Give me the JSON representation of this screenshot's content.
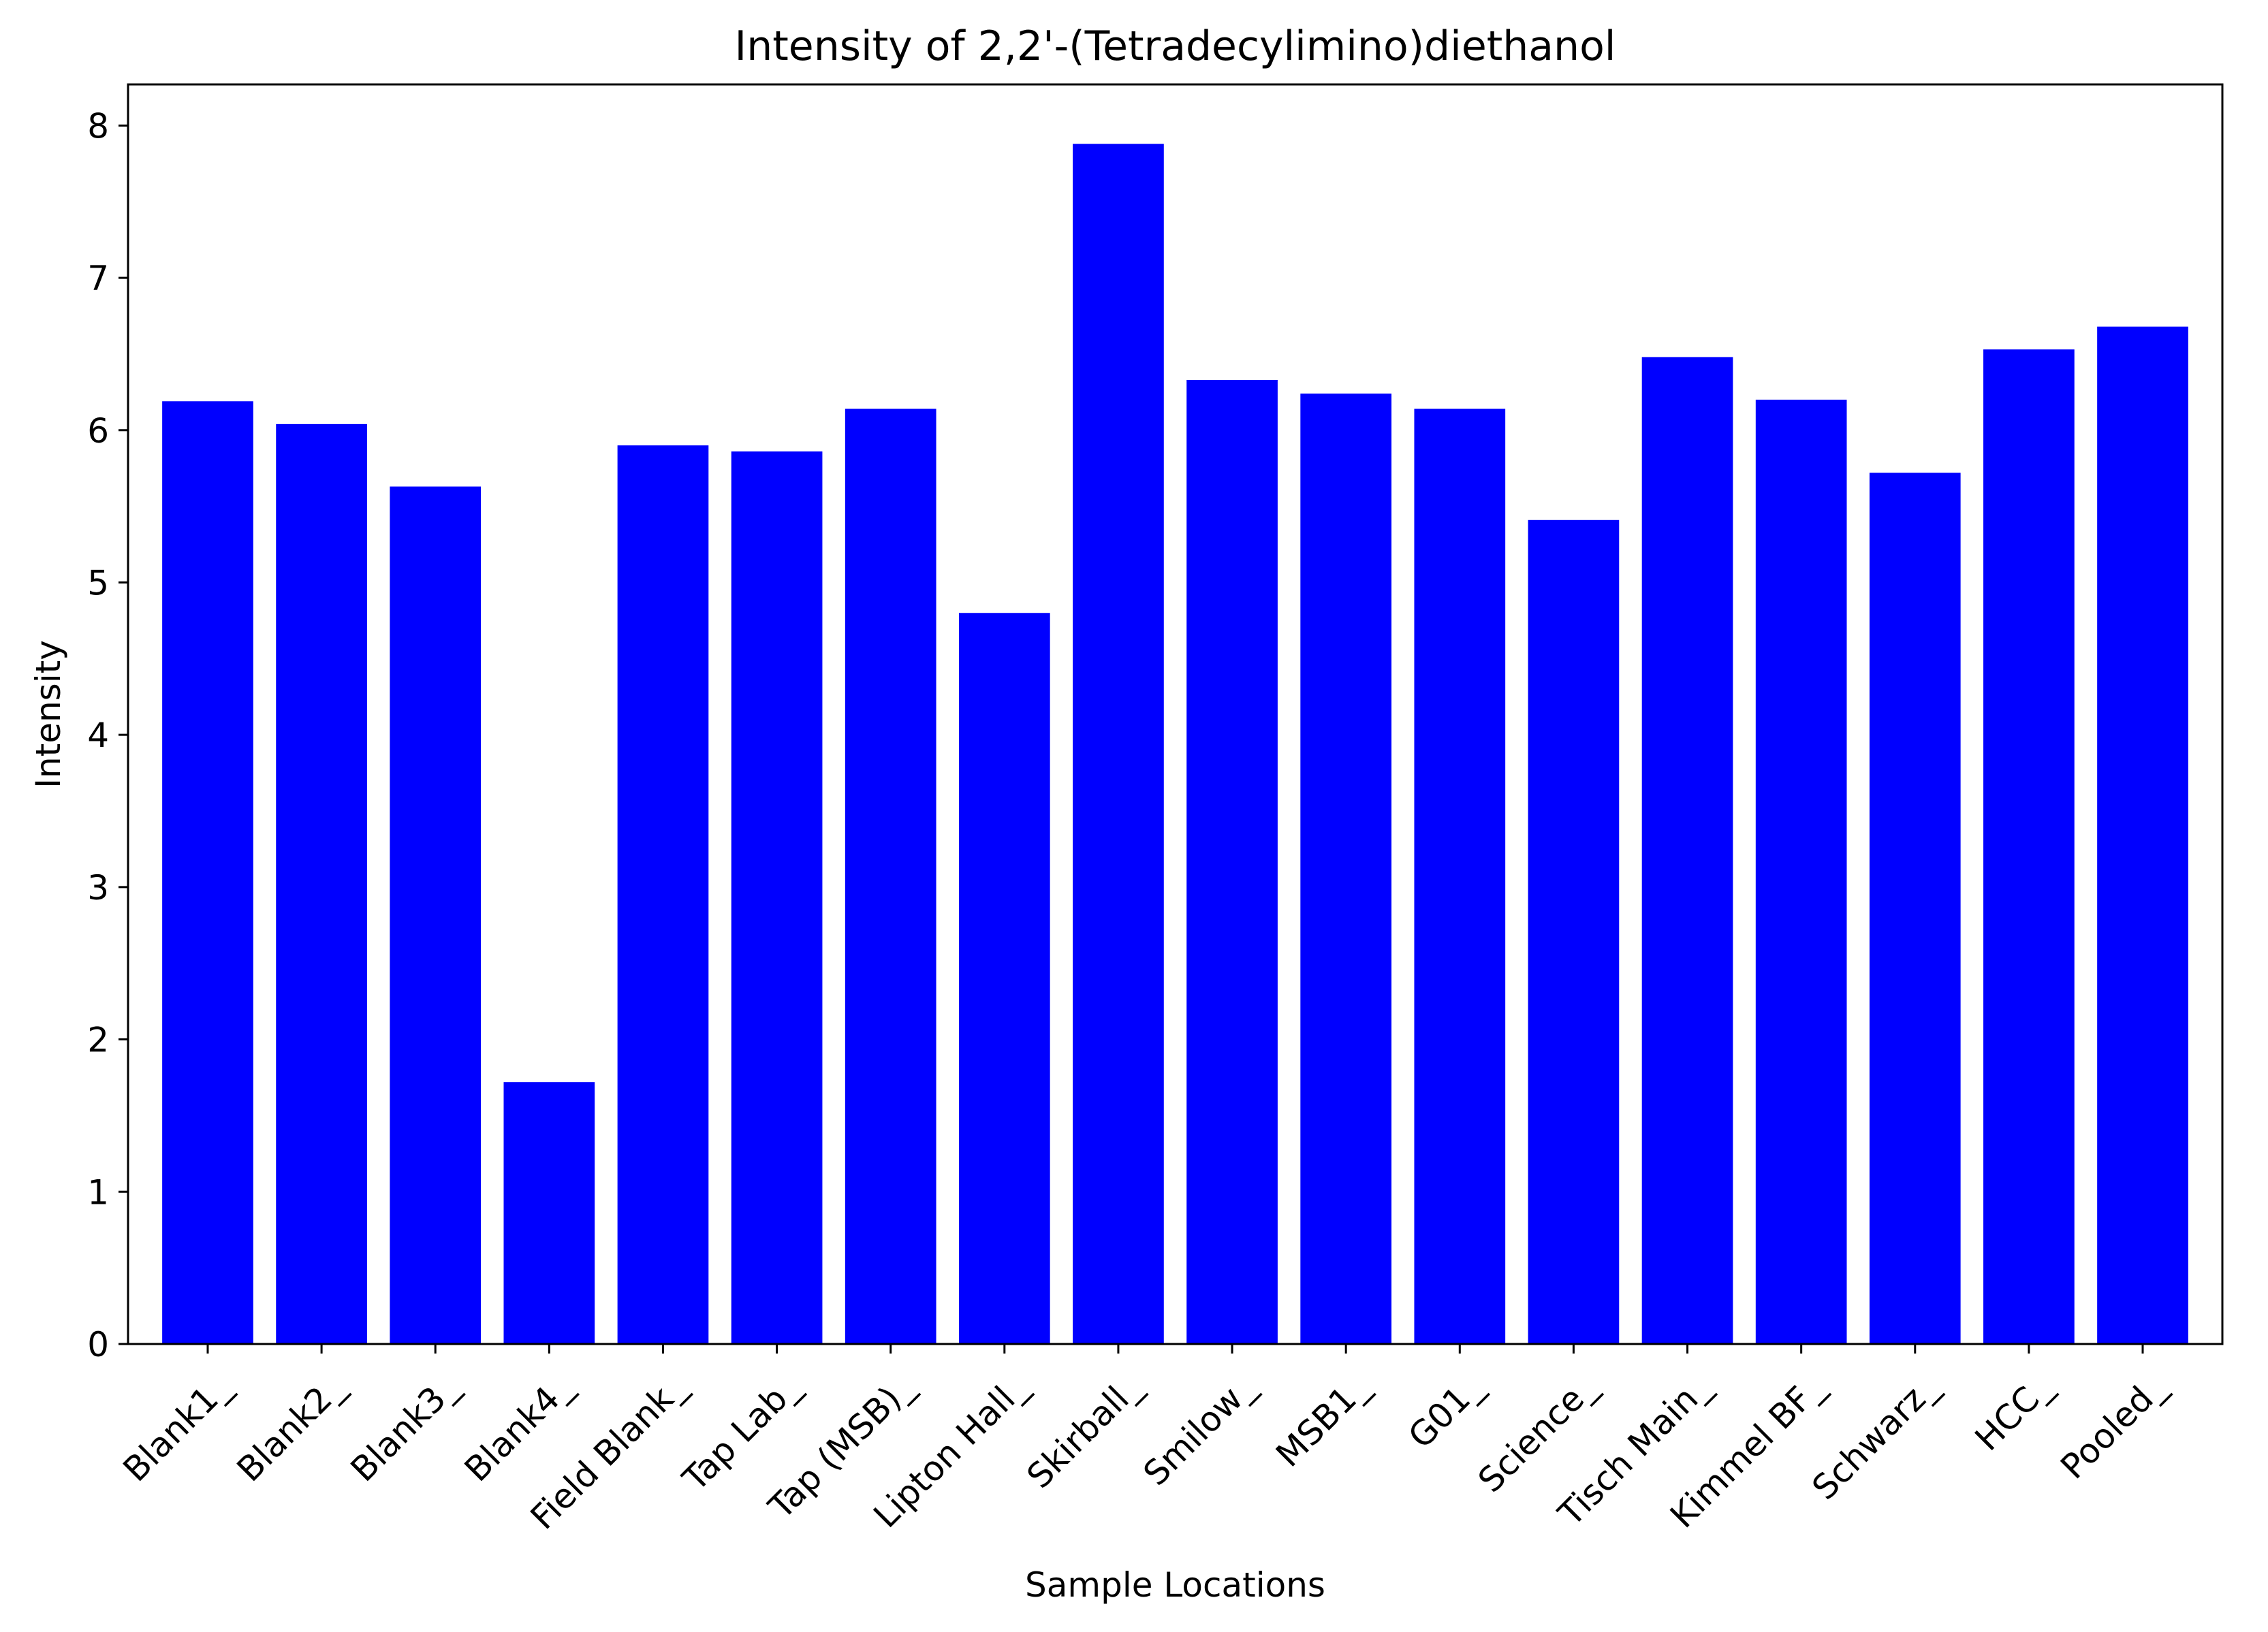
{
  "chart_data": {
    "type": "bar",
    "title": "Intensity of 2,2'-(Tetradecylimino)diethanol",
    "xlabel": "Sample Locations",
    "ylabel": "Intensity",
    "categories": [
      "Blank1_",
      "Blank2_",
      "Blank3_",
      "Blank4_",
      "Field Blank_",
      "Tap Lab_",
      "Tap (MSB)_",
      "Lipton Hall_",
      "Skirball_",
      "Smilow_",
      "MSB1_",
      "G01_",
      "Science_",
      "Tisch Main_",
      "Kimmel BF_",
      "Schwarz_",
      "HCC_",
      "Pooled_"
    ],
    "values": [
      6.19,
      6.04,
      5.63,
      1.72,
      5.9,
      5.86,
      6.14,
      4.8,
      7.88,
      6.33,
      6.24,
      6.14,
      5.41,
      6.48,
      6.2,
      5.72,
      6.53,
      6.68
    ],
    "ylim": [
      0,
      8.27
    ],
    "yticks": [
      0,
      1,
      2,
      3,
      4,
      5,
      6,
      7,
      8
    ],
    "bar_color": "#0000ff",
    "grid": false,
    "legend": "none"
  }
}
